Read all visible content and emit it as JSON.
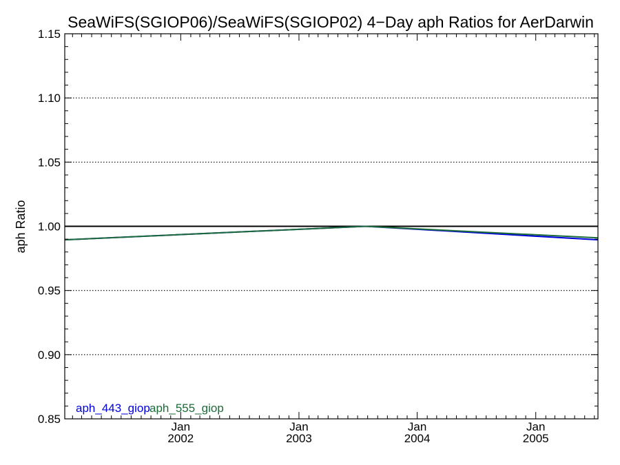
{
  "chart_data": {
    "type": "line",
    "title": "SeaWiFS(SGIOP06)/SeaWiFS(SGIOP02) 4−Day aph Ratios for AerDarwin",
    "xlabel": "",
    "ylabel": "aph Ratio",
    "xlim": [
      "2001-01-08",
      "2005-07-12"
    ],
    "ylim": [
      0.85,
      1.15
    ],
    "yticks": [
      "0.85",
      "0.90",
      "0.95",
      "1.00",
      "1.05",
      "1.10",
      "1.15"
    ],
    "xticks": [
      {
        "date": "2002-01-01",
        "line1": "Jan",
        "line2": "2002"
      },
      {
        "date": "2003-01-01",
        "line1": "Jan",
        "line2": "2003"
      },
      {
        "date": "2004-01-01",
        "line1": "Jan",
        "line2": "2004"
      },
      {
        "date": "2005-01-01",
        "line1": "Jan",
        "line2": "2005"
      }
    ],
    "reference_line": 1.0,
    "grid": "dotted horizontal",
    "legend_position": "bottom-left",
    "series": [
      {
        "name": "aph_443_giop",
        "color": "#0000dd",
        "x": [
          "2001-01-08",
          "2003-07-26",
          "2005-07-12"
        ],
        "y": [
          0.9895,
          1.0,
          0.9895
        ]
      },
      {
        "name": "aph_555_giop",
        "color": "#1a6b38",
        "x": [
          "2001-01-08",
          "2003-07-26",
          "2005-07-12"
        ],
        "y": [
          0.9895,
          1.0,
          0.991
        ]
      }
    ]
  }
}
